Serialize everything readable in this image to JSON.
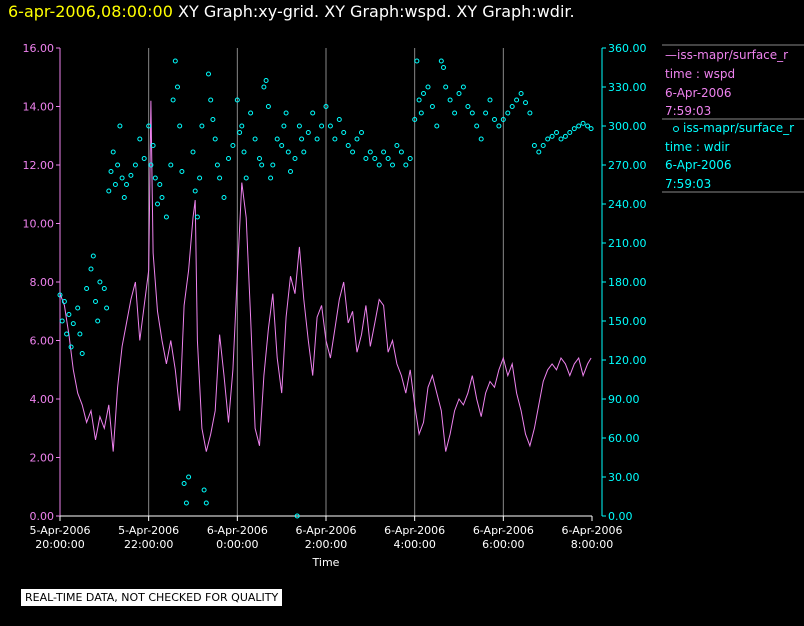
{
  "header": {
    "time_label": "6-apr-2006,08:00:00",
    "titles": "XY Graph:xy-grid.  XY Graph:wspd.  XY Graph:wdir."
  },
  "colors": {
    "wspd": "#ee82ee",
    "wdir": "#00ffff",
    "grid": "#888888",
    "axis": "#ffffff",
    "header_time": "#ffff00",
    "background": "#000000"
  },
  "legend": {
    "series": [
      {
        "name": "—iss-mapr/surface_r",
        "field": "time : wspd",
        "date": "6-Apr-2006",
        "time": "7:59:03",
        "color": "#ee82ee",
        "marker": "line"
      },
      {
        "name": "iss-mapr/surface_r",
        "field": "time : wdir",
        "date": "6-Apr-2006",
        "time": "7:59:03",
        "color": "#00ffff",
        "marker": "circle"
      }
    ]
  },
  "disclaimer": "REAL-TIME DATA, NOT CHECKED FOR QUALITY",
  "chart_data": {
    "type": "line",
    "xlabel": "Time",
    "x_ticks": [
      {
        "hour": 20,
        "date": "5-Apr-2006",
        "time": "20:00:00"
      },
      {
        "hour": 22,
        "date": "5-Apr-2006",
        "time": "22:00:00"
      },
      {
        "hour": 24,
        "date": "6-Apr-2006",
        "time": "0:00:00"
      },
      {
        "hour": 26,
        "date": "6-Apr-2006",
        "time": "2:00:00"
      },
      {
        "hour": 28,
        "date": "6-Apr-2006",
        "time": "4:00:00"
      },
      {
        "hour": 30,
        "date": "6-Apr-2006",
        "time": "6:00:00"
      },
      {
        "hour": 32,
        "date": "6-Apr-2006",
        "time": "8:00:00"
      }
    ],
    "x_range": [
      20,
      32
    ],
    "grid": "vertical",
    "y_left": {
      "range": [
        0,
        16
      ],
      "ticks": [
        "0.00",
        "2.00",
        "4.00",
        "6.00",
        "8.00",
        "10.00",
        "12.00",
        "14.00",
        "16.00"
      ],
      "color": "#ee82ee"
    },
    "y_right": {
      "range": [
        0,
        360
      ],
      "ticks": [
        "0.00",
        "30.00",
        "60.00",
        "90.00",
        "120.00",
        "150.00",
        "180.00",
        "210.00",
        "240.00",
        "270.00",
        "300.00",
        "330.00",
        "360.00"
      ],
      "color": "#00ffff"
    },
    "series": [
      {
        "name": "wspd",
        "axis": "left",
        "style": "line",
        "points": [
          [
            20.0,
            7.6
          ],
          [
            20.1,
            7.2
          ],
          [
            20.2,
            6.2
          ],
          [
            20.3,
            5.0
          ],
          [
            20.4,
            4.2
          ],
          [
            20.5,
            3.8
          ],
          [
            20.6,
            3.2
          ],
          [
            20.7,
            3.6
          ],
          [
            20.8,
            2.6
          ],
          [
            20.9,
            3.4
          ],
          [
            21.0,
            3.0
          ],
          [
            21.1,
            3.8
          ],
          [
            21.2,
            2.2
          ],
          [
            21.3,
            4.4
          ],
          [
            21.4,
            5.8
          ],
          [
            21.5,
            6.6
          ],
          [
            21.6,
            7.4
          ],
          [
            21.7,
            8.0
          ],
          [
            21.8,
            6.0
          ],
          [
            21.9,
            7.2
          ],
          [
            22.0,
            8.4
          ],
          [
            22.05,
            14.2
          ],
          [
            22.1,
            9.0
          ],
          [
            22.2,
            7.0
          ],
          [
            22.3,
            6.0
          ],
          [
            22.4,
            5.2
          ],
          [
            22.5,
            6.0
          ],
          [
            22.6,
            5.0
          ],
          [
            22.7,
            3.6
          ],
          [
            22.8,
            7.2
          ],
          [
            22.9,
            8.4
          ],
          [
            23.0,
            10.2
          ],
          [
            23.05,
            10.8
          ],
          [
            23.1,
            6.0
          ],
          [
            23.2,
            3.0
          ],
          [
            23.3,
            2.2
          ],
          [
            23.4,
            2.8
          ],
          [
            23.5,
            3.6
          ],
          [
            23.6,
            6.2
          ],
          [
            23.7,
            4.8
          ],
          [
            23.8,
            3.2
          ],
          [
            23.9,
            5.0
          ],
          [
            24.0,
            8.2
          ],
          [
            24.1,
            11.4
          ],
          [
            24.2,
            10.2
          ],
          [
            24.3,
            6.8
          ],
          [
            24.4,
            3.0
          ],
          [
            24.5,
            2.4
          ],
          [
            24.6,
            4.8
          ],
          [
            24.7,
            6.4
          ],
          [
            24.8,
            7.6
          ],
          [
            24.9,
            5.4
          ],
          [
            25.0,
            4.2
          ],
          [
            25.1,
            6.8
          ],
          [
            25.2,
            8.2
          ],
          [
            25.3,
            7.6
          ],
          [
            25.4,
            9.2
          ],
          [
            25.5,
            7.4
          ],
          [
            25.6,
            6.0
          ],
          [
            25.7,
            4.8
          ],
          [
            25.8,
            6.8
          ],
          [
            25.9,
            7.2
          ],
          [
            26.0,
            6.0
          ],
          [
            26.1,
            5.4
          ],
          [
            26.2,
            6.4
          ],
          [
            26.3,
            7.4
          ],
          [
            26.4,
            8.0
          ],
          [
            26.5,
            6.6
          ],
          [
            26.6,
            7.0
          ],
          [
            26.7,
            5.6
          ],
          [
            26.8,
            6.2
          ],
          [
            26.9,
            7.2
          ],
          [
            27.0,
            5.8
          ],
          [
            27.1,
            6.6
          ],
          [
            27.2,
            7.4
          ],
          [
            27.3,
            7.2
          ],
          [
            27.4,
            5.6
          ],
          [
            27.5,
            6.0
          ],
          [
            27.6,
            5.2
          ],
          [
            27.7,
            4.8
          ],
          [
            27.8,
            4.2
          ],
          [
            27.9,
            5.0
          ],
          [
            28.0,
            3.8
          ],
          [
            28.1,
            2.8
          ],
          [
            28.2,
            3.2
          ],
          [
            28.3,
            4.4
          ],
          [
            28.4,
            4.8
          ],
          [
            28.5,
            4.2
          ],
          [
            28.6,
            3.6
          ],
          [
            28.7,
            2.2
          ],
          [
            28.8,
            2.8
          ],
          [
            28.9,
            3.6
          ],
          [
            29.0,
            4.0
          ],
          [
            29.1,
            3.8
          ],
          [
            29.2,
            4.2
          ],
          [
            29.3,
            4.8
          ],
          [
            29.4,
            4.0
          ],
          [
            29.5,
            3.4
          ],
          [
            29.6,
            4.2
          ],
          [
            29.7,
            4.6
          ],
          [
            29.8,
            4.4
          ],
          [
            29.9,
            5.0
          ],
          [
            30.0,
            5.4
          ],
          [
            30.1,
            4.8
          ],
          [
            30.2,
            5.2
          ],
          [
            30.3,
            4.2
          ],
          [
            30.4,
            3.6
          ],
          [
            30.5,
            2.8
          ],
          [
            30.6,
            2.4
          ],
          [
            30.7,
            3.0
          ],
          [
            30.8,
            3.8
          ],
          [
            30.9,
            4.6
          ],
          [
            31.0,
            5.0
          ],
          [
            31.1,
            5.2
          ],
          [
            31.2,
            5.0
          ],
          [
            31.3,
            5.4
          ],
          [
            31.4,
            5.2
          ],
          [
            31.5,
            4.8
          ],
          [
            31.6,
            5.2
          ],
          [
            31.7,
            5.4
          ],
          [
            31.8,
            4.8
          ],
          [
            31.9,
            5.2
          ],
          [
            31.98,
            5.4
          ]
        ]
      },
      {
        "name": "wdir",
        "axis": "right",
        "style": "markers",
        "points": [
          [
            20.0,
            170
          ],
          [
            20.05,
            150
          ],
          [
            20.1,
            165
          ],
          [
            20.15,
            140
          ],
          [
            20.2,
            155
          ],
          [
            20.25,
            130
          ],
          [
            20.3,
            148
          ],
          [
            20.4,
            160
          ],
          [
            20.45,
            140
          ],
          [
            20.5,
            125
          ],
          [
            20.6,
            175
          ],
          [
            20.7,
            190
          ],
          [
            20.75,
            200
          ],
          [
            20.8,
            165
          ],
          [
            20.85,
            150
          ],
          [
            20.9,
            180
          ],
          [
            21.0,
            175
          ],
          [
            21.05,
            160
          ],
          [
            21.1,
            250
          ],
          [
            21.15,
            265
          ],
          [
            21.2,
            280
          ],
          [
            21.25,
            255
          ],
          [
            21.3,
            270
          ],
          [
            21.35,
            300
          ],
          [
            21.4,
            260
          ],
          [
            21.45,
            245
          ],
          [
            21.5,
            255
          ],
          [
            21.6,
            262
          ],
          [
            21.7,
            270
          ],
          [
            21.8,
            290
          ],
          [
            21.9,
            275
          ],
          [
            22.0,
            300
          ],
          [
            22.05,
            270
          ],
          [
            22.1,
            285
          ],
          [
            22.15,
            260
          ],
          [
            22.2,
            240
          ],
          [
            22.25,
            255
          ],
          [
            22.3,
            245
          ],
          [
            22.4,
            230
          ],
          [
            22.5,
            270
          ],
          [
            22.55,
            320
          ],
          [
            22.6,
            350
          ],
          [
            22.65,
            330
          ],
          [
            22.7,
            300
          ],
          [
            22.75,
            265
          ],
          [
            22.8,
            25
          ],
          [
            22.85,
            10
          ],
          [
            22.9,
            30
          ],
          [
            23.0,
            280
          ],
          [
            23.05,
            250
          ],
          [
            23.1,
            230
          ],
          [
            23.15,
            260
          ],
          [
            23.2,
            300
          ],
          [
            23.25,
            20
          ],
          [
            23.3,
            10
          ],
          [
            23.35,
            340
          ],
          [
            23.4,
            320
          ],
          [
            23.45,
            305
          ],
          [
            23.5,
            290
          ],
          [
            23.55,
            270
          ],
          [
            23.6,
            260
          ],
          [
            23.7,
            245
          ],
          [
            23.8,
            275
          ],
          [
            23.9,
            285
          ],
          [
            24.0,
            320
          ],
          [
            24.05,
            295
          ],
          [
            24.1,
            300
          ],
          [
            24.15,
            280
          ],
          [
            24.2,
            260
          ],
          [
            24.3,
            310
          ],
          [
            24.4,
            290
          ],
          [
            24.5,
            275
          ],
          [
            24.55,
            270
          ],
          [
            24.6,
            330
          ],
          [
            24.65,
            335
          ],
          [
            24.7,
            315
          ],
          [
            24.75,
            260
          ],
          [
            24.8,
            270
          ],
          [
            24.9,
            290
          ],
          [
            25.0,
            285
          ],
          [
            25.05,
            300
          ],
          [
            25.1,
            310
          ],
          [
            25.15,
            280
          ],
          [
            25.2,
            265
          ],
          [
            25.3,
            275
          ],
          [
            25.35,
            0
          ],
          [
            25.4,
            300
          ],
          [
            25.45,
            290
          ],
          [
            25.5,
            280
          ],
          [
            25.6,
            295
          ],
          [
            25.7,
            310
          ],
          [
            25.8,
            290
          ],
          [
            25.9,
            300
          ],
          [
            26.0,
            315
          ],
          [
            26.1,
            300
          ],
          [
            26.2,
            290
          ],
          [
            26.3,
            305
          ],
          [
            26.4,
            295
          ],
          [
            26.5,
            285
          ],
          [
            26.6,
            280
          ],
          [
            26.7,
            290
          ],
          [
            26.8,
            295
          ],
          [
            26.9,
            275
          ],
          [
            27.0,
            280
          ],
          [
            27.1,
            275
          ],
          [
            27.2,
            270
          ],
          [
            27.3,
            280
          ],
          [
            27.4,
            275
          ],
          [
            27.5,
            270
          ],
          [
            27.6,
            285
          ],
          [
            27.7,
            280
          ],
          [
            27.8,
            270
          ],
          [
            27.9,
            275
          ],
          [
            28.0,
            305
          ],
          [
            28.05,
            350
          ],
          [
            28.1,
            320
          ],
          [
            28.15,
            310
          ],
          [
            28.2,
            325
          ],
          [
            28.3,
            330
          ],
          [
            28.4,
            315
          ],
          [
            28.5,
            300
          ],
          [
            28.6,
            350
          ],
          [
            28.65,
            345
          ],
          [
            28.7,
            330
          ],
          [
            28.8,
            320
          ],
          [
            28.9,
            310
          ],
          [
            29.0,
            325
          ],
          [
            29.1,
            330
          ],
          [
            29.2,
            315
          ],
          [
            29.3,
            310
          ],
          [
            29.4,
            300
          ],
          [
            29.5,
            290
          ],
          [
            29.6,
            310
          ],
          [
            29.7,
            320
          ],
          [
            29.8,
            305
          ],
          [
            29.9,
            300
          ],
          [
            30.0,
            305
          ],
          [
            30.1,
            310
          ],
          [
            30.2,
            315
          ],
          [
            30.3,
            320
          ],
          [
            30.4,
            325
          ],
          [
            30.5,
            318
          ],
          [
            30.6,
            310
          ],
          [
            30.7,
            285
          ],
          [
            30.8,
            280
          ],
          [
            30.9,
            285
          ],
          [
            31.0,
            290
          ],
          [
            31.1,
            292
          ],
          [
            31.2,
            295
          ],
          [
            31.3,
            290
          ],
          [
            31.4,
            292
          ],
          [
            31.5,
            295
          ],
          [
            31.6,
            298
          ],
          [
            31.7,
            300
          ],
          [
            31.8,
            302
          ],
          [
            31.9,
            300
          ],
          [
            31.98,
            298
          ]
        ]
      }
    ]
  }
}
